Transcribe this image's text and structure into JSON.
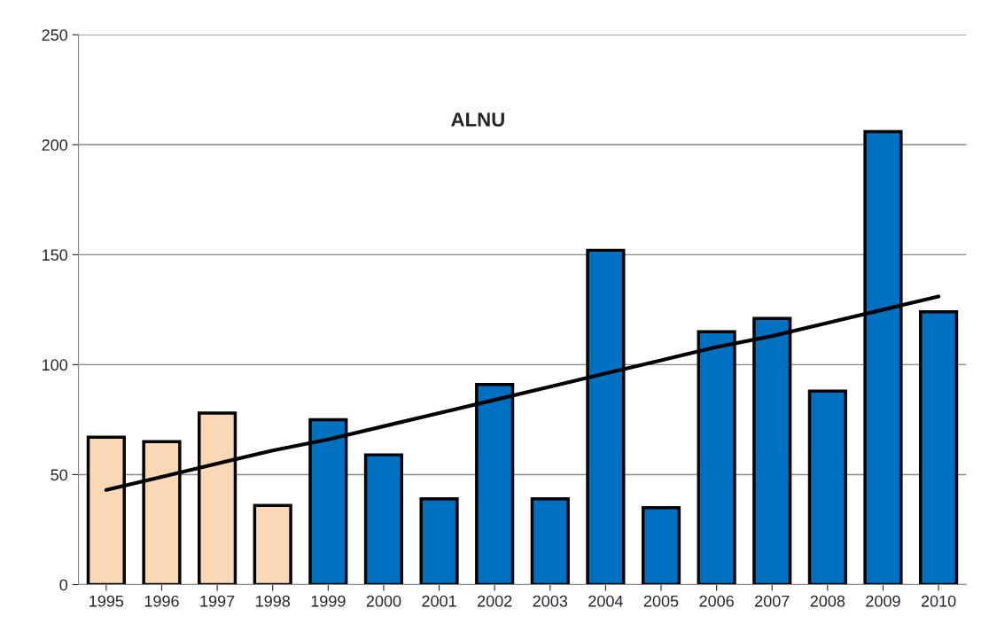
{
  "chart_data": {
    "type": "bar",
    "title": "ALNU",
    "categories": [
      "1995",
      "1996",
      "1997",
      "1998",
      "1999",
      "2000",
      "2001",
      "2002",
      "2003",
      "2004",
      "2005",
      "2006",
      "2007",
      "2008",
      "2009",
      "2010"
    ],
    "series": [
      {
        "values": [
          67,
          65,
          78,
          36,
          75,
          59,
          39,
          91,
          39,
          152,
          35,
          115,
          121,
          88,
          206,
          124
        ],
        "colors": [
          "#fad7b5",
          "#fad7b5",
          "#fad7b5",
          "#fad7b5",
          "#0070c0",
          "#0070c0",
          "#0070c0",
          "#0070c0",
          "#0070c0",
          "#0070c0",
          "#0070c0",
          "#0070c0",
          "#0070c0",
          "#0070c0",
          "#0070c0",
          "#0070c0"
        ]
      },
      {
        "type": "line",
        "values": [
          43,
          49,
          55,
          61,
          66,
          72,
          78,
          84,
          90,
          96,
          102,
          108,
          113,
          119,
          125,
          131
        ],
        "color": "#000000"
      }
    ],
    "ylim": [
      0,
      250
    ],
    "yticks": [
      0,
      50,
      100,
      150,
      200,
      250
    ],
    "grid": "y",
    "legend": false
  }
}
